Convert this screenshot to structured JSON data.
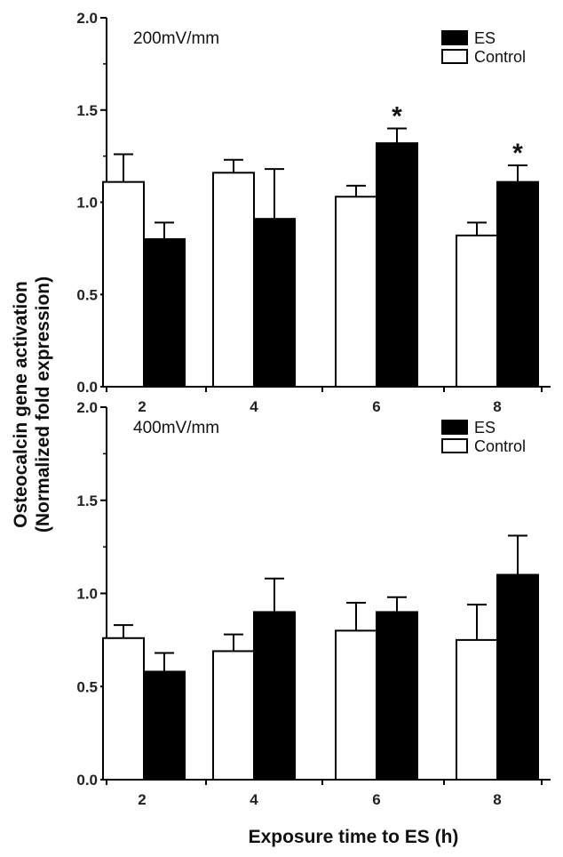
{
  "chart_data": {
    "type": "bar",
    "xlabel": "Exposure time to ES (h)",
    "ylabel_lines": [
      "Osteocalcin gene activation",
      "(Normalized fold expression)"
    ],
    "categories": [
      "2",
      "4",
      "6",
      "8"
    ],
    "ylim": [
      0,
      2.0
    ],
    "yticks": [
      0.0,
      0.5,
      1.0,
      1.5,
      2.0
    ],
    "ytick_labels": [
      "0.0",
      "0.5",
      "1.0",
      "1.5",
      "2.0"
    ],
    "colors": {
      "Control": "#ffffff",
      "ES": "#000000"
    },
    "panels": [
      {
        "annotation": "200mV/mm",
        "legend": [
          "ES",
          "Control"
        ],
        "series": [
          {
            "name": "Control",
            "values": [
              1.11,
              1.16,
              1.03,
              0.82
            ],
            "errors": [
              0.15,
              0.07,
              0.06,
              0.07
            ]
          },
          {
            "name": "ES",
            "values": [
              0.8,
              0.91,
              1.32,
              1.11
            ],
            "errors": [
              0.09,
              0.27,
              0.08,
              0.09
            ]
          }
        ],
        "significance": [
          {
            "category": "6",
            "series": "ES",
            "symbol": "*"
          },
          {
            "category": "8",
            "series": "ES",
            "symbol": "*"
          }
        ]
      },
      {
        "annotation": "400mV/mm",
        "legend": [
          "ES",
          "Control"
        ],
        "series": [
          {
            "name": "Control",
            "values": [
              0.76,
              0.69,
              0.8,
              0.75
            ],
            "errors": [
              0.07,
              0.09,
              0.15,
              0.19
            ]
          },
          {
            "name": "ES",
            "values": [
              0.58,
              0.9,
              0.9,
              1.1
            ],
            "errors": [
              0.1,
              0.18,
              0.08,
              0.21
            ]
          }
        ],
        "significance": []
      }
    ]
  }
}
